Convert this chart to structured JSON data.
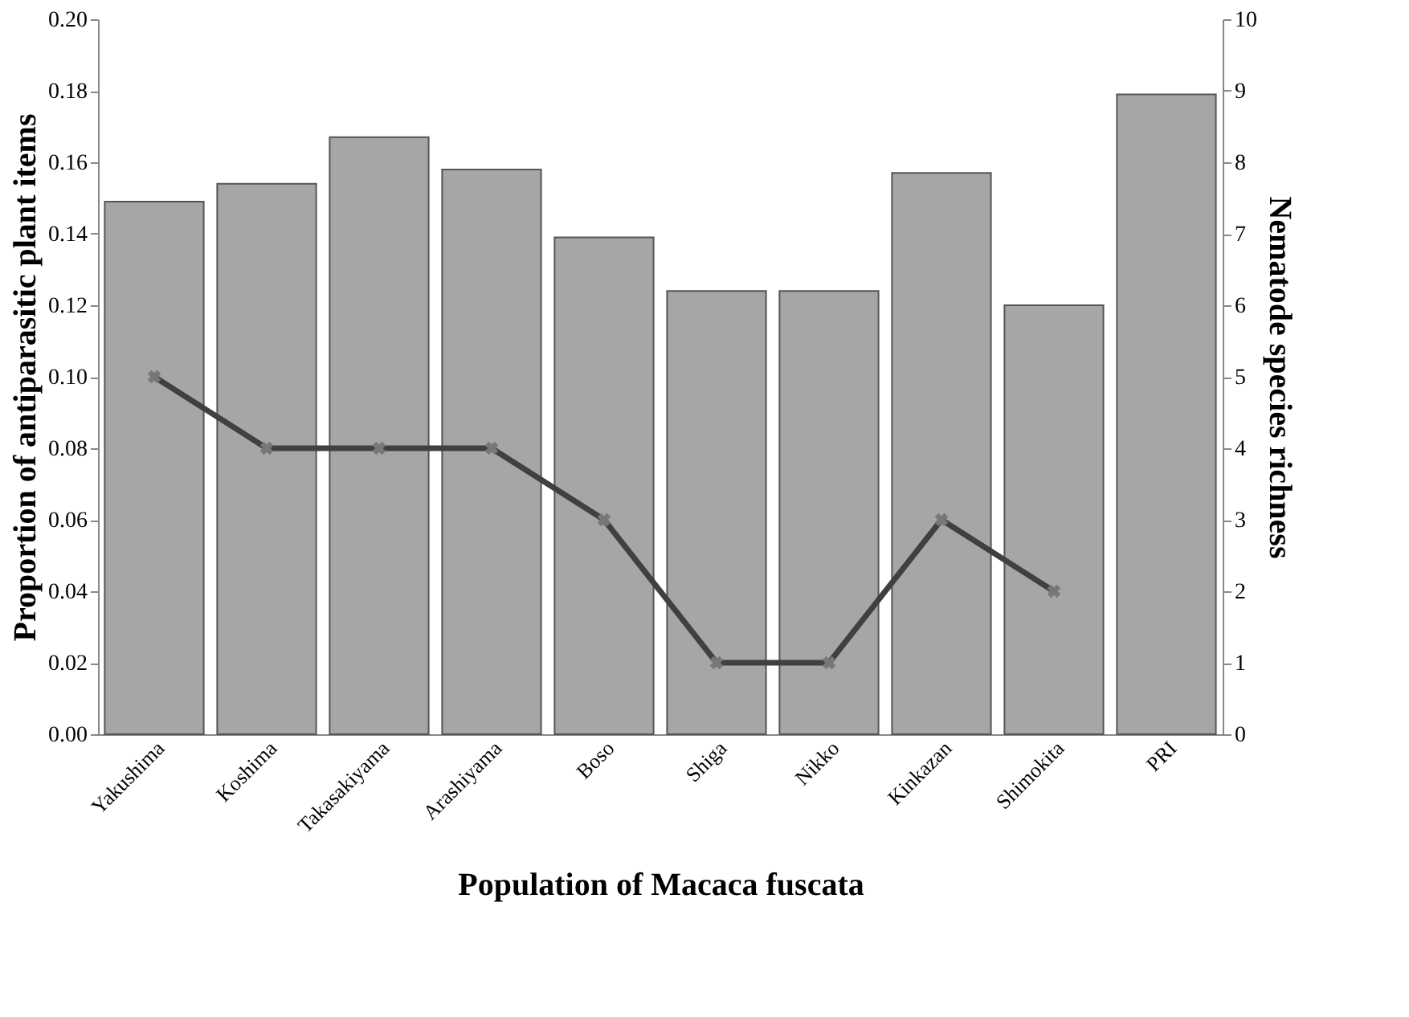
{
  "chart_data": {
    "type": "bar",
    "xlabel": "Population of Macaca fuscata",
    "ylabel": "Proportion of antiparasitic plant items",
    "y2label": "Nematode species richness",
    "categories": [
      "Yakushima",
      "Koshima",
      "Takasakiyama",
      "Arashiyama",
      "Boso",
      "Shiga",
      "Nikko",
      "Kinkazan",
      "Shimokita",
      "PRI"
    ],
    "series": [
      {
        "color": "#a6a6a6",
        "values": [
          0.149,
          0.154,
          0.167,
          0.158,
          0.139,
          0.124,
          0.124,
          0.157,
          0.12,
          0.179
        ]
      },
      {
        "type": "line",
        "axis": "y2",
        "color": "#404040",
        "values": [
          5,
          4,
          4,
          4,
          3,
          1,
          1,
          3,
          2,
          null
        ]
      }
    ],
    "ylim": [
      0,
      0.2
    ],
    "yticks": [
      {
        "value": 0,
        "label": "0.00"
      },
      {
        "value": 0.02,
        "label": "0.02"
      },
      {
        "value": 0.04,
        "label": "0.04"
      },
      {
        "value": 0.06,
        "label": "0.06"
      },
      {
        "value": 0.08,
        "label": "0.08"
      },
      {
        "value": 0.1,
        "label": "0.10"
      },
      {
        "value": 0.12,
        "label": "0.12"
      },
      {
        "value": 0.14,
        "label": "0.14"
      },
      {
        "value": 0.16,
        "label": "0.16"
      },
      {
        "value": 0.18,
        "label": "0.18"
      },
      {
        "value": 0.2,
        "label": "0.20"
      }
    ],
    "y2lim": [
      0,
      10
    ],
    "y2ticks": [
      0,
      1,
      2,
      3,
      4,
      5,
      6,
      7,
      8,
      9,
      10
    ],
    "grid": false,
    "marker": "cross",
    "line_style": "solid"
  }
}
